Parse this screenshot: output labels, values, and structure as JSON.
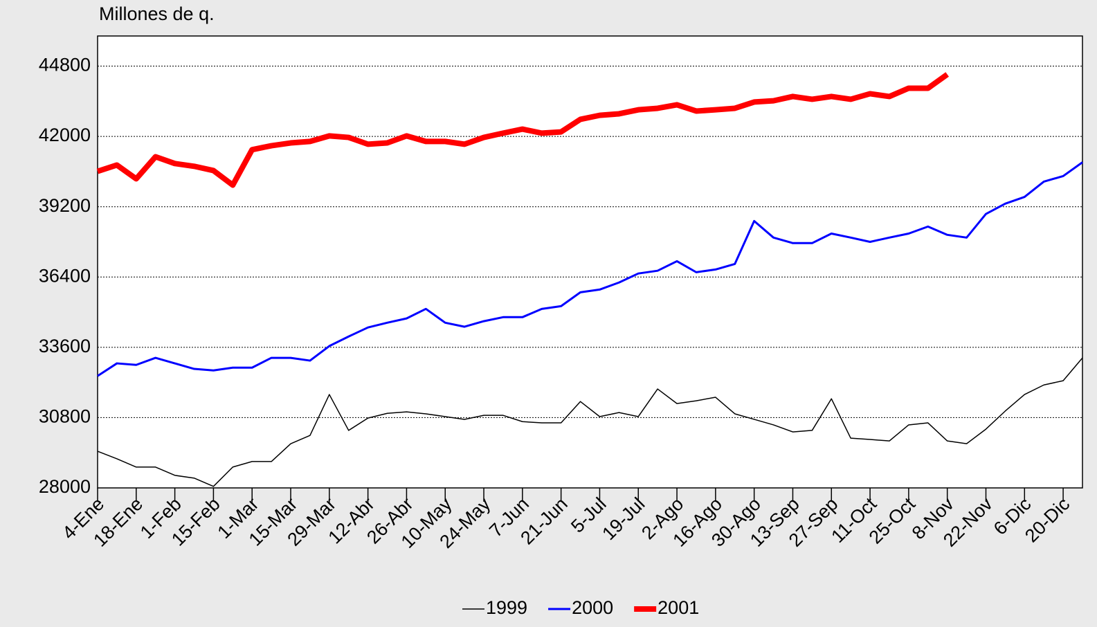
{
  "chart_data": {
    "type": "line",
    "y_label": "Millones de q.",
    "categories": [
      "4-Ene",
      null,
      "18-Ene",
      null,
      "1-Feb",
      null,
      "15-Feb",
      null,
      "1-Mar",
      null,
      "15-Mar",
      null,
      "29-Mar",
      null,
      "12-Abr",
      null,
      "26-Abr",
      null,
      "10-May",
      null,
      "24-May",
      null,
      "7-Jun",
      null,
      "21-Jun",
      null,
      "5-Jul",
      null,
      "19-Jul",
      null,
      "2-Ago",
      null,
      "16-Ago",
      null,
      "30-Ago",
      null,
      "13-Sep",
      null,
      "27-Sep",
      null,
      "11-Oct",
      null,
      "25-Oct",
      null,
      "8-Nov",
      null,
      "22-Nov",
      null,
      "6-Dic",
      null,
      "20-Dic",
      null
    ],
    "series": [
      {
        "name": "1999",
        "color": "#000000",
        "width": 1.5,
        "values": [
          29460,
          29160,
          28830,
          28830,
          28500,
          28390,
          28060,
          28830,
          29050,
          29050,
          29760,
          30090,
          31720,
          30290,
          30780,
          30970,
          31030,
          30950,
          30840,
          30730,
          30890,
          30890,
          30640,
          30590,
          30590,
          31440,
          30840,
          31000,
          30840,
          31940,
          31360,
          31470,
          31610,
          30950,
          30730,
          30510,
          30230,
          30290,
          31550,
          29980,
          29930,
          29870,
          30510,
          30590,
          29870,
          29760,
          30340,
          31060,
          31720,
          32100,
          32270,
          33180
        ]
      },
      {
        "name": "2000",
        "color": "#0000ff",
        "width": 3,
        "values": [
          32460,
          32960,
          32900,
          33180,
          32960,
          32740,
          32680,
          32790,
          32790,
          33180,
          33180,
          33070,
          33650,
          34030,
          34390,
          34580,
          34750,
          35130,
          34580,
          34420,
          34640,
          34800,
          34800,
          35130,
          35240,
          35790,
          35900,
          36180,
          36540,
          36650,
          37030,
          36590,
          36700,
          36920,
          38630,
          37970,
          37750,
          37750,
          38130,
          37970,
          37800,
          37970,
          38130,
          38410,
          38080,
          37970,
          38910,
          39320,
          39590,
          40200,
          40420,
          40970
        ]
      },
      {
        "name": "2001",
        "color": "#ff0000",
        "width": 8,
        "values": [
          40610,
          40860,
          40310,
          41190,
          40920,
          40810,
          40640,
          40060,
          41470,
          41630,
          41740,
          41800,
          42020,
          41960,
          41690,
          41740,
          42020,
          41800,
          41800,
          41690,
          41960,
          42130,
          42290,
          42130,
          42180,
          42680,
          42840,
          42900,
          43060,
          43120,
          43260,
          43010,
          43060,
          43120,
          43370,
          43420,
          43590,
          43480,
          43590,
          43480,
          43700,
          43590,
          43920,
          43920,
          44470,
          null,
          null,
          null,
          null,
          null,
          null,
          null
        ]
      }
    ],
    "ylim": [
      28000,
      46000
    ],
    "yticks": [
      28000,
      30800,
      33600,
      36400,
      39200,
      42000,
      44800
    ],
    "grid": true
  }
}
